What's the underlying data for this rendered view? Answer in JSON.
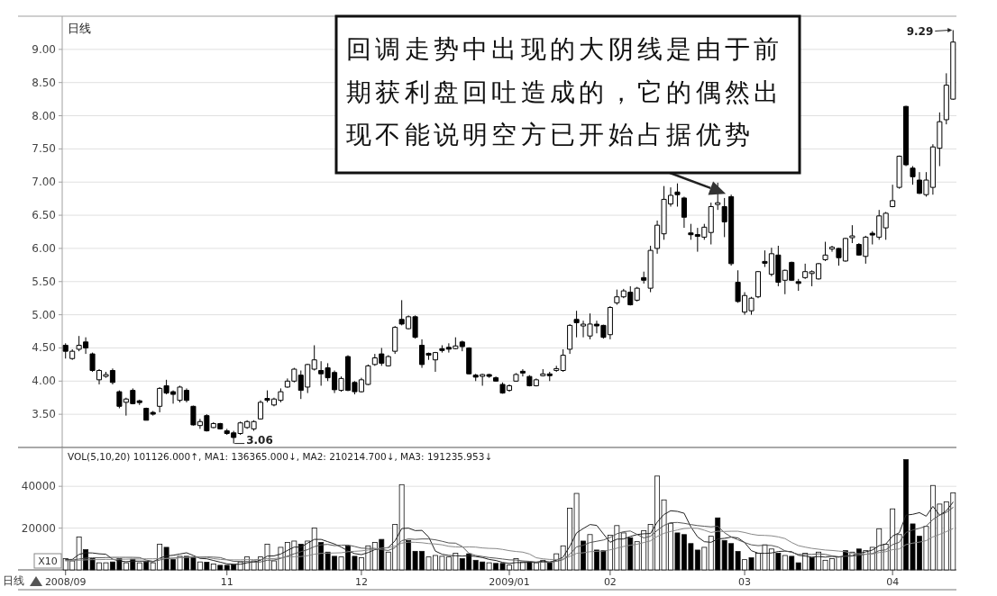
{
  "chart_data": [
    {
      "type": "candlestick",
      "title": "日线",
      "categories": [
        null,
        null,
        null,
        null,
        null,
        null,
        null,
        null,
        null,
        null,
        null,
        null,
        null,
        null,
        null,
        null,
        null,
        null,
        null,
        null,
        null,
        null,
        null,
        null,
        null,
        null,
        null,
        null,
        null,
        null,
        null,
        null,
        null,
        null,
        null,
        null,
        null,
        null,
        null,
        null,
        null,
        null,
        null,
        null,
        null,
        null,
        null,
        null,
        null,
        null,
        null,
        null,
        null,
        null,
        null,
        null,
        null,
        null,
        null,
        null,
        null,
        null,
        null,
        null,
        null,
        null,
        null,
        null,
        null,
        null,
        null,
        null,
        null,
        null,
        null,
        null,
        null,
        null,
        null,
        null,
        null,
        null,
        null,
        null,
        null,
        null,
        null,
        null,
        null,
        null,
        null,
        null,
        null,
        null,
        null,
        null,
        null,
        null,
        null,
        null,
        null,
        null,
        null,
        null,
        null,
        null,
        null,
        null,
        null,
        null,
        null,
        null,
        null,
        null,
        null,
        null,
        null,
        null,
        null,
        null,
        null,
        null,
        null,
        null,
        null,
        null,
        null,
        null,
        null,
        null,
        null,
        null,
        null
      ],
      "ohlc": [
        [
          4.54,
          4.57,
          4.34,
          4.45
        ],
        [
          4.34,
          4.48,
          4.32,
          4.45
        ],
        [
          4.48,
          4.68,
          4.45,
          4.54
        ],
        [
          4.59,
          4.66,
          4.41,
          4.5
        ],
        [
          4.41,
          4.43,
          4.14,
          4.16
        ],
        [
          4.02,
          4.18,
          3.95,
          4.16
        ],
        [
          4.08,
          4.14,
          4.05,
          4.09
        ],
        [
          4.16,
          4.19,
          3.95,
          3.98
        ],
        [
          3.84,
          3.86,
          3.59,
          3.62
        ],
        [
          3.68,
          3.75,
          3.48,
          3.73
        ],
        [
          3.86,
          3.89,
          3.65,
          3.66
        ],
        [
          3.7,
          3.72,
          3.64,
          3.68
        ],
        [
          3.59,
          3.6,
          3.41,
          3.41
        ],
        [
          3.52,
          3.55,
          3.48,
          3.51
        ],
        [
          3.62,
          3.91,
          3.53,
          3.89
        ],
        [
          3.93,
          4.02,
          3.8,
          3.82
        ],
        [
          3.84,
          3.86,
          3.66,
          3.8
        ],
        [
          3.71,
          3.93,
          3.68,
          3.91
        ],
        [
          3.86,
          3.89,
          3.68,
          3.71
        ],
        [
          3.62,
          3.63,
          3.33,
          3.34
        ],
        [
          3.33,
          3.43,
          3.28,
          3.39
        ],
        [
          3.48,
          3.5,
          3.24,
          3.25
        ],
        [
          3.3,
          3.38,
          3.29,
          3.36
        ],
        [
          3.36,
          3.37,
          3.27,
          3.28
        ],
        [
          3.25,
          3.28,
          3.19,
          3.21
        ],
        [
          3.22,
          3.25,
          3.06,
          3.15
        ],
        [
          3.21,
          3.39,
          3.19,
          3.37
        ],
        [
          3.3,
          3.41,
          3.28,
          3.39
        ],
        [
          3.28,
          3.41,
          3.25,
          3.39
        ],
        [
          3.43,
          3.71,
          3.42,
          3.68
        ],
        [
          3.73,
          3.86,
          3.68,
          3.72
        ],
        [
          3.64,
          3.75,
          3.62,
          3.73
        ],
        [
          3.71,
          3.89,
          3.68,
          3.84
        ],
        [
          3.91,
          4.04,
          3.9,
          4.0
        ],
        [
          4.0,
          4.2,
          3.98,
          4.18
        ],
        [
          4.09,
          4.16,
          3.73,
          3.86
        ],
        [
          3.91,
          4.26,
          3.82,
          4.25
        ],
        [
          4.18,
          4.54,
          4.16,
          4.32
        ],
        [
          4.16,
          4.3,
          3.93,
          4.11
        ],
        [
          4.2,
          4.27,
          4.0,
          4.05
        ],
        [
          4.13,
          4.16,
          3.82,
          3.87
        ],
        [
          3.86,
          4.07,
          3.84,
          4.04
        ],
        [
          4.37,
          4.39,
          3.85,
          3.86
        ],
        [
          3.98,
          4.0,
          3.8,
          3.84
        ],
        [
          3.84,
          4.05,
          3.83,
          4.02
        ],
        [
          3.95,
          4.25,
          3.94,
          4.23
        ],
        [
          4.25,
          4.41,
          4.23,
          4.35
        ],
        [
          4.41,
          4.5,
          4.23,
          4.27
        ],
        [
          4.23,
          4.39,
          4.22,
          4.37
        ],
        [
          4.45,
          4.83,
          4.41,
          4.81
        ],
        [
          4.93,
          5.22,
          4.84,
          4.86
        ],
        [
          4.79,
          4.99,
          4.78,
          4.97
        ],
        [
          4.97,
          4.99,
          4.64,
          4.66
        ],
        [
          4.54,
          4.63,
          4.2,
          4.25
        ],
        [
          4.41,
          4.43,
          4.32,
          4.4
        ],
        [
          4.32,
          4.44,
          4.14,
          4.43
        ],
        [
          4.48,
          4.54,
          4.43,
          4.47
        ],
        [
          4.5,
          4.57,
          4.43,
          4.49
        ],
        [
          4.49,
          4.66,
          4.48,
          4.53
        ],
        [
          4.59,
          4.61,
          4.45,
          4.52
        ],
        [
          4.5,
          4.51,
          4.1,
          4.11
        ],
        [
          4.09,
          4.11,
          4.0,
          4.06
        ],
        [
          4.08,
          4.11,
          3.93,
          4.09
        ],
        [
          4.09,
          4.11,
          4.05,
          4.08
        ],
        [
          4.05,
          4.07,
          3.99,
          4.0
        ],
        [
          3.95,
          3.98,
          3.81,
          3.82
        ],
        [
          3.86,
          3.95,
          3.84,
          3.93
        ],
        [
          4.0,
          4.12,
          3.99,
          4.1
        ],
        [
          4.14,
          4.18,
          4.07,
          4.13
        ],
        [
          4.07,
          4.09,
          3.92,
          3.93
        ],
        [
          3.93,
          4.04,
          3.92,
          4.02
        ],
        [
          4.09,
          4.18,
          4.07,
          4.1
        ],
        [
          4.1,
          4.14,
          4.0,
          4.09
        ],
        [
          4.17,
          4.23,
          4.14,
          4.18
        ],
        [
          4.16,
          4.48,
          4.14,
          4.39
        ],
        [
          4.48,
          4.86,
          4.41,
          4.84
        ],
        [
          4.93,
          5.06,
          4.66,
          4.88
        ],
        [
          4.84,
          4.91,
          4.66,
          4.85
        ],
        [
          4.68,
          5.02,
          4.63,
          4.86
        ],
        [
          4.85,
          4.91,
          4.72,
          4.84
        ],
        [
          4.84,
          4.85,
          4.64,
          4.66
        ],
        [
          4.7,
          5.13,
          4.63,
          5.11
        ],
        [
          5.18,
          5.38,
          5.15,
          5.27
        ],
        [
          5.27,
          5.39,
          5.25,
          5.36
        ],
        [
          5.34,
          5.43,
          5.14,
          5.15
        ],
        [
          5.22,
          5.42,
          5.2,
          5.4
        ],
        [
          5.56,
          5.65,
          5.47,
          5.52
        ],
        [
          5.4,
          6.04,
          5.34,
          5.97
        ],
        [
          6.0,
          6.42,
          5.92,
          6.35
        ],
        [
          6.22,
          6.94,
          6.13,
          6.74
        ],
        [
          6.67,
          6.92,
          6.63,
          6.8
        ],
        [
          6.85,
          6.98,
          6.63,
          6.81
        ],
        [
          6.76,
          6.78,
          6.31,
          6.47
        ],
        [
          6.23,
          6.37,
          6.13,
          6.21
        ],
        [
          6.2,
          6.31,
          5.95,
          6.19
        ],
        [
          6.17,
          6.37,
          6.13,
          6.32
        ],
        [
          6.24,
          6.69,
          6.06,
          6.63
        ],
        [
          6.67,
          6.99,
          6.58,
          6.68
        ],
        [
          6.63,
          6.76,
          6.17,
          6.4
        ],
        [
          6.78,
          6.81,
          5.74,
          5.77
        ],
        [
          5.49,
          5.67,
          5.18,
          5.2
        ],
        [
          5.04,
          5.34,
          5.0,
          5.29
        ],
        [
          5.06,
          5.27,
          5.0,
          5.25
        ],
        [
          5.27,
          5.66,
          5.25,
          5.65
        ],
        [
          5.8,
          5.97,
          5.72,
          5.78
        ],
        [
          5.61,
          6.01,
          5.58,
          5.92
        ],
        [
          5.9,
          6.04,
          5.43,
          5.49
        ],
        [
          5.52,
          5.68,
          5.31,
          5.67
        ],
        [
          5.79,
          5.8,
          5.51,
          5.52
        ],
        [
          5.49,
          5.54,
          5.36,
          5.48
        ],
        [
          5.56,
          5.77,
          5.54,
          5.65
        ],
        [
          5.63,
          5.67,
          5.43,
          5.64
        ],
        [
          5.54,
          5.78,
          5.53,
          5.77
        ],
        [
          5.83,
          6.1,
          5.81,
          5.9
        ],
        [
          6.0,
          6.04,
          5.95,
          6.01
        ],
        [
          6.0,
          6.01,
          5.74,
          5.86
        ],
        [
          5.81,
          6.16,
          5.8,
          6.15
        ],
        [
          6.17,
          6.35,
          6.08,
          6.18
        ],
        [
          6.06,
          6.08,
          5.89,
          5.9
        ],
        [
          5.88,
          6.19,
          5.77,
          6.17
        ],
        [
          6.22,
          6.26,
          6.06,
          6.21
        ],
        [
          6.17,
          6.58,
          6.13,
          6.49
        ],
        [
          6.31,
          6.55,
          6.13,
          6.53
        ],
        [
          6.63,
          6.96,
          6.62,
          6.72
        ],
        [
          6.92,
          7.4,
          6.9,
          7.39
        ],
        [
          8.14,
          8.15,
          7.24,
          7.26
        ],
        [
          7.21,
          7.24,
          6.96,
          7.08
        ],
        [
          7.03,
          7.15,
          6.82,
          6.83
        ],
        [
          6.81,
          7.15,
          6.78,
          7.03
        ],
        [
          6.92,
          7.57,
          6.81,
          7.53
        ],
        [
          7.51,
          8.05,
          7.24,
          7.91
        ],
        [
          7.94,
          8.64,
          7.87,
          8.46
        ],
        [
          8.25,
          9.29,
          8.24,
          9.11
        ]
      ],
      "color": "#000000",
      "ylim": [
        3.0,
        9.5
      ],
      "yticks": [
        {
          "value": 3.5,
          "label": "3.50"
        },
        {
          "value": 4.0,
          "label": "4.00"
        },
        {
          "value": 4.5,
          "label": "4.50"
        },
        {
          "value": 5.0,
          "label": "5.00"
        },
        {
          "value": 5.5,
          "label": "5.50"
        },
        {
          "value": 6.0,
          "label": "6.00"
        },
        {
          "value": 6.5,
          "label": "6.50"
        },
        {
          "value": 7.0,
          "label": "7.00"
        },
        {
          "value": 7.5,
          "label": "7.50"
        },
        {
          "value": 8.0,
          "label": "8.00"
        },
        {
          "value": 8.5,
          "label": "8.50"
        },
        {
          "value": 9.0,
          "label": "9.00"
        }
      ],
      "grid": "y",
      "tick_labels": "y",
      "annotations": [
        "回调走势中出现的大阴线是由于前期获利盘回吐造成的，它的偶然出现不能说明空方已开始占据优势",
        "3.06",
        "9.29"
      ]
    },
    {
      "type": "bar",
      "title": "VOL(5,10,20)  101126.000↑, MA1: 136365.000↓, MA2: 210214.700↓, MA3: 191235.953↓",
      "categories": [
        "2008/09",
        null,
        null,
        null,
        null,
        null,
        null,
        null,
        null,
        null,
        null,
        null,
        null,
        null,
        null,
        null,
        null,
        null,
        null,
        null,
        null,
        null,
        null,
        null,
        "11",
        null,
        null,
        null,
        null,
        null,
        null,
        null,
        null,
        null,
        null,
        null,
        null,
        null,
        null,
        null,
        null,
        null,
        null,
        null,
        "12",
        null,
        null,
        null,
        null,
        null,
        null,
        null,
        null,
        null,
        null,
        null,
        null,
        null,
        null,
        null,
        null,
        null,
        null,
        null,
        null,
        null,
        "2009/01",
        null,
        null,
        null,
        null,
        null,
        null,
        null,
        null,
        null,
        null,
        null,
        null,
        null,
        null,
        "02",
        null,
        null,
        null,
        null,
        null,
        null,
        null,
        null,
        null,
        null,
        null,
        null,
        null,
        null,
        null,
        null,
        null,
        null,
        null,
        "03",
        null,
        null,
        null,
        null,
        null,
        null,
        null,
        null,
        null,
        null,
        null,
        null,
        null,
        null,
        null,
        null,
        null,
        null,
        null,
        null,
        null,
        "04",
        null,
        null,
        null,
        null,
        null,
        null,
        null,
        null,
        null
      ],
      "series": [
        {
          "values": [
            5400,
            4300,
            15700,
            9700,
            5400,
            3400,
            3400,
            3800,
            5400,
            3400,
            5100,
            3400,
            3800,
            3400,
            12300,
            10800,
            4900,
            6500,
            6500,
            5800,
            3800,
            3700,
            2800,
            2200,
            2200,
            2500,
            3800,
            6200,
            4300,
            6200,
            12300,
            4300,
            10800,
            13100,
            13800,
            12300,
            13800,
            20000,
            13100,
            8500,
            6500,
            6200,
            11400,
            6500,
            5800,
            11500,
            13100,
            14600,
            8500,
            21800,
            40800,
            14100,
            8900,
            8900,
            6200,
            6900,
            6500,
            6200,
            8000,
            5400,
            7700,
            4600,
            3800,
            3400,
            3100,
            3100,
            2300,
            5400,
            3800,
            3800,
            3400,
            4600,
            3400,
            7700,
            11500,
            29500,
            36600,
            13800,
            16900,
            9500,
            9200,
            16600,
            21200,
            17700,
            15400,
            13500,
            18800,
            21800,
            44900,
            33500,
            22300,
            17700,
            16900,
            12600,
            9500,
            10800,
            16100,
            24900,
            14100,
            12600,
            8800,
            4900,
            5800,
            8000,
            12000,
            10000,
            8000,
            6900,
            6500,
            3400,
            8000,
            5800,
            8500,
            4600,
            5400,
            6200,
            9200,
            8500,
            10000,
            9200,
            10800,
            19700,
            12300,
            29200,
            16900,
            52800,
            22000,
            16100,
            20800,
            40400,
            31500,
            32600,
            36900
          ],
          "colors": [
            "#ffffff",
            "#ffffff",
            "#ffffff",
            "#000000",
            "#000000",
            "#ffffff",
            "#ffffff",
            "#000000",
            "#000000",
            "#ffffff",
            "#000000",
            "#ffffff",
            "#000000",
            "#ffffff",
            "#ffffff",
            "#000000",
            "#000000",
            "#ffffff",
            "#000000",
            "#000000",
            "#ffffff",
            "#000000",
            "#ffffff",
            "#000000",
            "#000000",
            "#000000",
            "#ffffff",
            "#ffffff",
            "#ffffff",
            "#ffffff",
            "#ffffff",
            "#ffffff",
            "#ffffff",
            "#ffffff",
            "#ffffff",
            "#000000",
            "#ffffff",
            "#ffffff",
            "#000000",
            "#000000",
            "#000000",
            "#ffffff",
            "#000000",
            "#000000",
            "#ffffff",
            "#ffffff",
            "#ffffff",
            "#000000",
            "#ffffff",
            "#ffffff",
            "#ffffff",
            "#000000",
            "#000000",
            "#000000",
            "#ffffff",
            "#ffffff",
            "#ffffff",
            "#ffffff",
            "#ffffff",
            "#000000",
            "#000000",
            "#000000",
            "#000000",
            "#ffffff",
            "#000000",
            "#000000",
            "#ffffff",
            "#ffffff",
            "#ffffff",
            "#000000",
            "#ffffff",
            "#ffffff",
            "#000000",
            "#ffffff",
            "#ffffff",
            "#ffffff",
            "#ffffff",
            "#000000",
            "#ffffff",
            "#000000",
            "#000000",
            "#ffffff",
            "#ffffff",
            "#ffffff",
            "#000000",
            "#ffffff",
            "#ffffff",
            "#ffffff",
            "#ffffff",
            "#ffffff",
            "#ffffff",
            "#000000",
            "#000000",
            "#000000",
            "#000000",
            "#ffffff",
            "#ffffff",
            "#000000",
            "#000000",
            "#000000",
            "#000000",
            "#ffffff",
            "#000000",
            "#ffffff",
            "#ffffff",
            "#ffffff",
            "#000000",
            "#ffffff",
            "#000000",
            "#000000",
            "#ffffff",
            "#000000",
            "#ffffff",
            "#ffffff",
            "#ffffff",
            "#ffffff",
            "#000000",
            "#ffffff",
            "#000000",
            "#ffffff",
            "#ffffff",
            "#ffffff",
            "#ffffff",
            "#ffffff",
            "#ffffff",
            "#000000",
            "#000000",
            "#000000",
            "#ffffff",
            "#ffffff",
            "#ffffff",
            "#ffffff",
            "#ffffff"
          ]
        },
        {
          "type": "line",
          "color": "#222222",
          "values": [
            5000,
            5000,
            7400,
            8200,
            8100,
            7700,
            7500,
            5100,
            4300,
            3900,
            4200,
            4200,
            4200,
            3800,
            5600,
            6700,
            7000,
            7600,
            8200,
            6900,
            5500,
            5300,
            4500,
            3700,
            2900,
            2700,
            2700,
            3400,
            3800,
            4600,
            6600,
            6700,
            7600,
            9300,
            10900,
            10900,
            12800,
            14600,
            14600,
            13500,
            12400,
            10900,
            9100,
            7800,
            7300,
            8300,
            9700,
            10300,
            10700,
            13900,
            19800,
            20000,
            18800,
            18900,
            15800,
            9000,
            7500,
            6900,
            6800,
            6600,
            6800,
            6400,
            5900,
            5000,
            4500,
            3600,
            3100,
            3500,
            3500,
            3700,
            3700,
            4200,
            3800,
            4600,
            6100,
            11300,
            17700,
            19800,
            21700,
            21300,
            17200,
            13200,
            14700,
            14800,
            16000,
            16900,
            17300,
            17400,
            22900,
            26500,
            28300,
            28000,
            27100,
            20600,
            15800,
            13500,
            13200,
            14800,
            15100,
            15700,
            15300,
            13100,
            9200,
            8000,
            7900,
            8100,
            8800,
            9000,
            8700,
            7000,
            6600,
            6100,
            6400,
            6100,
            6500,
            6100,
            6800,
            6800,
            7900,
            8600,
            9500,
            11600,
            12400,
            16200,
            17800,
            26200,
            26600,
            27400,
            25700,
            30400,
            26200,
            28300,
            32400
          ]
        },
        {
          "type": "line",
          "color": "#555555",
          "values": [
            4600,
            4700,
            5200,
            5600,
            5800,
            5800,
            5900,
            6000,
            6000,
            6000,
            6000,
            5900,
            4700,
            4100,
            4700,
            5500,
            5600,
            5900,
            6000,
            6300,
            6100,
            6200,
            6100,
            5900,
            4900,
            4100,
            4000,
            4000,
            3700,
            3800,
            4600,
            4700,
            5500,
            6600,
            7700,
            8700,
            9700,
            11100,
            12000,
            12200,
            11600,
            11800,
            11900,
            11200,
            10400,
            10300,
            10300,
            9700,
            9300,
            10600,
            14000,
            14800,
            14600,
            14800,
            14800,
            14400,
            13700,
            12900,
            12800,
            11200,
            7900,
            6900,
            6400,
            5900,
            5600,
            5200,
            4800,
            4700,
            4300,
            4100,
            3700,
            3700,
            3600,
            4100,
            4900,
            7500,
            11000,
            11800,
            13100,
            13700,
            14300,
            15500,
            17300,
            18300,
            18600,
            17000,
            15300,
            16100,
            18900,
            21300,
            22600,
            22700,
            22300,
            21700,
            21200,
            20900,
            20600,
            20900,
            17800,
            15800,
            14400,
            13100,
            12000,
            11600,
            11800,
            11700,
            10900,
            9100,
            8400,
            7400,
            7400,
            7400,
            7700,
            7400,
            6700,
            6300,
            6500,
            6600,
            7000,
            7500,
            7800,
            9200,
            9600,
            12100,
            13200,
            17900,
            19100,
            19900,
            21000,
            24100,
            26200,
            27500,
            29900
          ]
        },
        {
          "type": "line",
          "color": "#888888",
          "values": [
            4300,
            4400,
            4600,
            4800,
            4900,
            4900,
            5000,
            5000,
            5100,
            5100,
            5200,
            5200,
            5300,
            5300,
            5400,
            5500,
            5600,
            5800,
            6000,
            6100,
            6000,
            6000,
            5400,
            5000,
            4800,
            4800,
            4800,
            4900,
            4900,
            5000,
            5400,
            5400,
            5800,
            6300,
            6300,
            6400,
            6800,
            7500,
            7900,
            8000,
            8100,
            8200,
            8700,
            8900,
            9100,
            9500,
            10000,
            10400,
            10600,
            11400,
            12800,
            13300,
            13200,
            13000,
            12600,
            12400,
            12000,
            11300,
            11000,
            10900,
            11000,
            10900,
            10500,
            10300,
            10200,
            9800,
            9200,
            8800,
            8500,
            7600,
            5800,
            5300,
            5000,
            5000,
            5200,
            6400,
            7900,
            8200,
            8700,
            8900,
            9000,
            9600,
            10400,
            11200,
            11800,
            12300,
            13100,
            13900,
            16000,
            17500,
            18400,
            19100,
            19800,
            20000,
            19900,
            19000,
            17900,
            18500,
            18400,
            18500,
            18500,
            17900,
            17100,
            16600,
            16500,
            16300,
            15800,
            15000,
            13100,
            11600,
            10900,
            10300,
            9900,
            9500,
            9300,
            9000,
            8700,
            7900,
            7700,
            7500,
            7600,
            8300,
            8700,
            9700,
            10000,
            12100,
            12800,
            13300,
            14000,
            15800,
            17000,
            18300,
            19800
          ]
        }
      ],
      "ylim": [
        0,
        58600
      ],
      "yticks": [
        20000,
        40000
      ],
      "grid": "y",
      "annotations": [
        "X10",
        "日线"
      ]
    }
  ]
}
